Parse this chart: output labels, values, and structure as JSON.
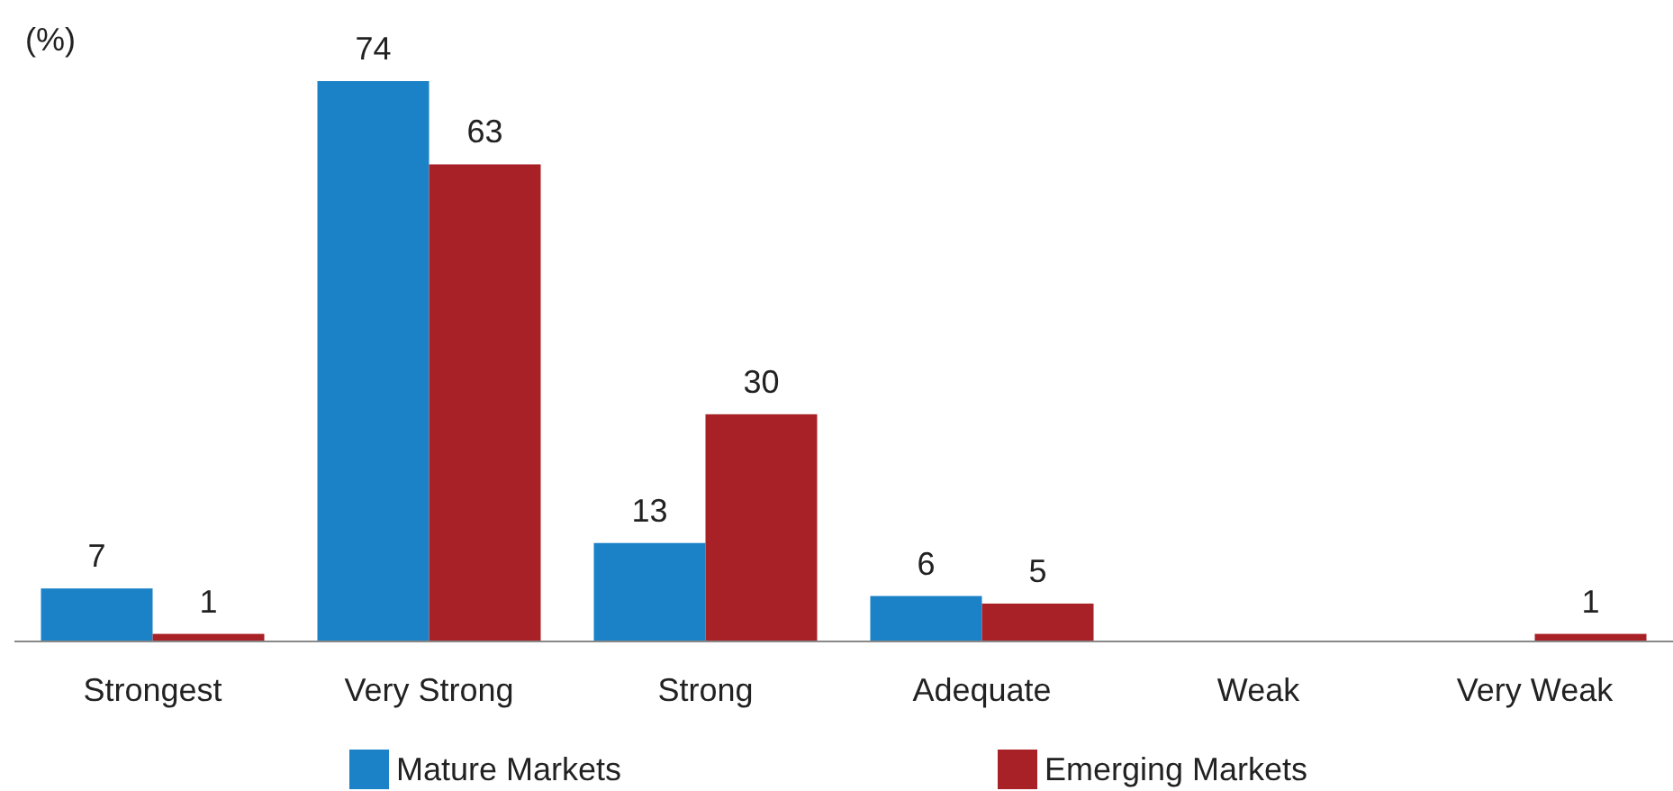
{
  "chart_data": {
    "type": "bar",
    "ylabel": "(%)",
    "categories": [
      "Strongest",
      "Very Strong",
      "Strong",
      "Adequate",
      "Weak",
      "Very Weak"
    ],
    "series": [
      {
        "name": "Mature Markets",
        "color": "#1b82c8",
        "values": [
          7,
          74,
          13,
          6,
          null,
          null
        ]
      },
      {
        "name": "Emerging Markets",
        "color": "#a82126",
        "values": [
          1,
          63,
          30,
          5,
          null,
          1
        ]
      }
    ],
    "data_labels": true,
    "legend": "bottom"
  }
}
